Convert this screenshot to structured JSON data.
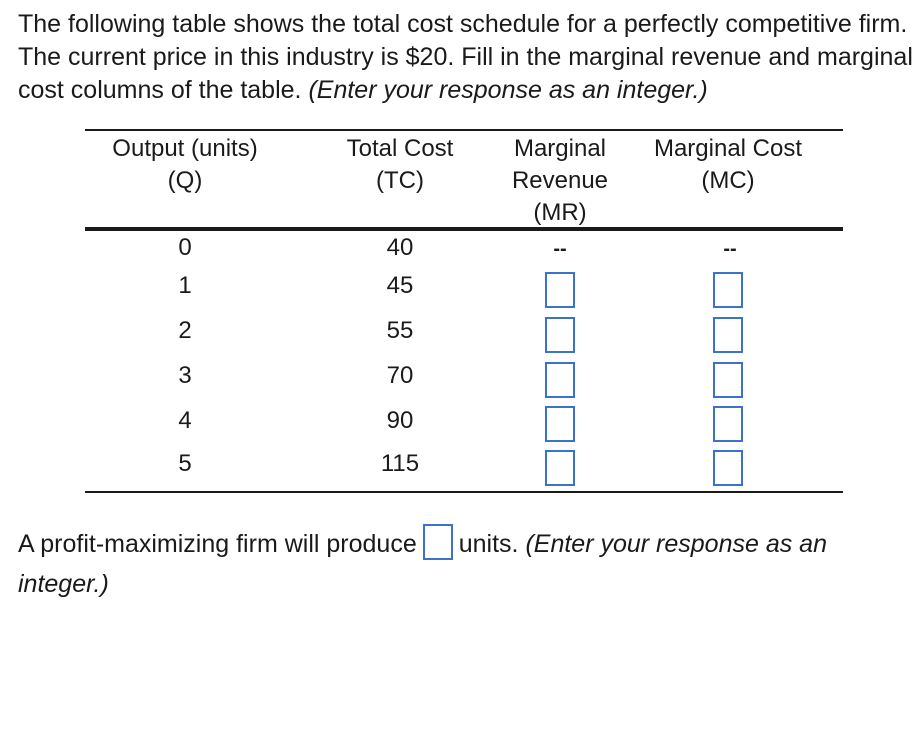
{
  "prompt": {
    "text": "The following table shows the total cost schedule for a perfectly competitive firm.  The current price in this industry is $20. Fill in the marginal revenue and marginal cost columns of the table.",
    "hint": "(Enter your response as an integer.)"
  },
  "table": {
    "headers": {
      "output": [
        "Output (units)",
        "(Q)"
      ],
      "total_cost": [
        "Total Cost",
        "(TC)"
      ],
      "mr": [
        "Marginal",
        "Revenue",
        "(MR)"
      ],
      "mc": [
        "Marginal Cost",
        "(MC)"
      ]
    },
    "placeholder_dash": "--",
    "rows": [
      {
        "q": "0",
        "tc": "40"
      },
      {
        "q": "1",
        "tc": "45"
      },
      {
        "q": "2",
        "tc": "55"
      },
      {
        "q": "3",
        "tc": "70"
      },
      {
        "q": "4",
        "tc": "90"
      },
      {
        "q": "5",
        "tc": "115"
      }
    ],
    "mr_inputs": [
      "",
      "",
      "",
      "",
      ""
    ],
    "mc_inputs": [
      "",
      "",
      "",
      "",
      ""
    ]
  },
  "answer": {
    "before": "A profit-maximizing firm will produce",
    "after": "units.",
    "hint": "(Enter your response as an integer.)",
    "value": ""
  },
  "colors": {
    "text": "#1a1a1a",
    "input_border": "#3a73c7"
  }
}
